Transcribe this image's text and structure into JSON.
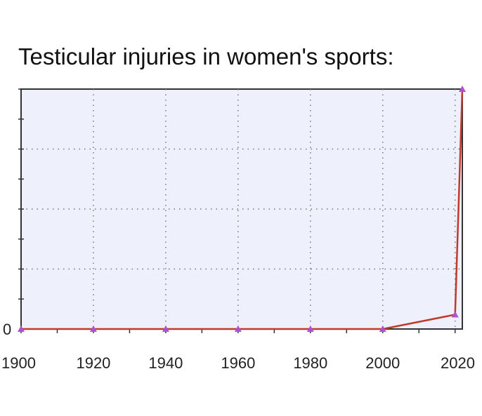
{
  "chart_data": {
    "type": "line",
    "title": "Testicular injuries in women's sports:",
    "xlabel": "",
    "ylabel": "",
    "x": [
      1900,
      1920,
      1940,
      1960,
      1980,
      2000,
      2020,
      2022
    ],
    "series": [
      {
        "values": [
          0,
          0,
          0,
          0,
          0,
          0,
          0.06,
          1
        ]
      }
    ],
    "x_ticks": [
      1900,
      1920,
      1940,
      1960,
      1980,
      2000,
      2020
    ],
    "x_tick_labels": [
      "1900",
      "1920",
      "1940",
      "1960",
      "1980",
      "2000",
      "2020"
    ],
    "y_tick_labels": [
      "0"
    ],
    "xlim": [
      1900,
      2022
    ],
    "ylim": [
      0,
      1
    ],
    "grid": true,
    "legend": "none",
    "colors": {
      "plot_background": "#eef0fb",
      "grid": "#777777",
      "line": "#c0392b",
      "marker": "#b04fd0",
      "axis": "#333333"
    }
  }
}
